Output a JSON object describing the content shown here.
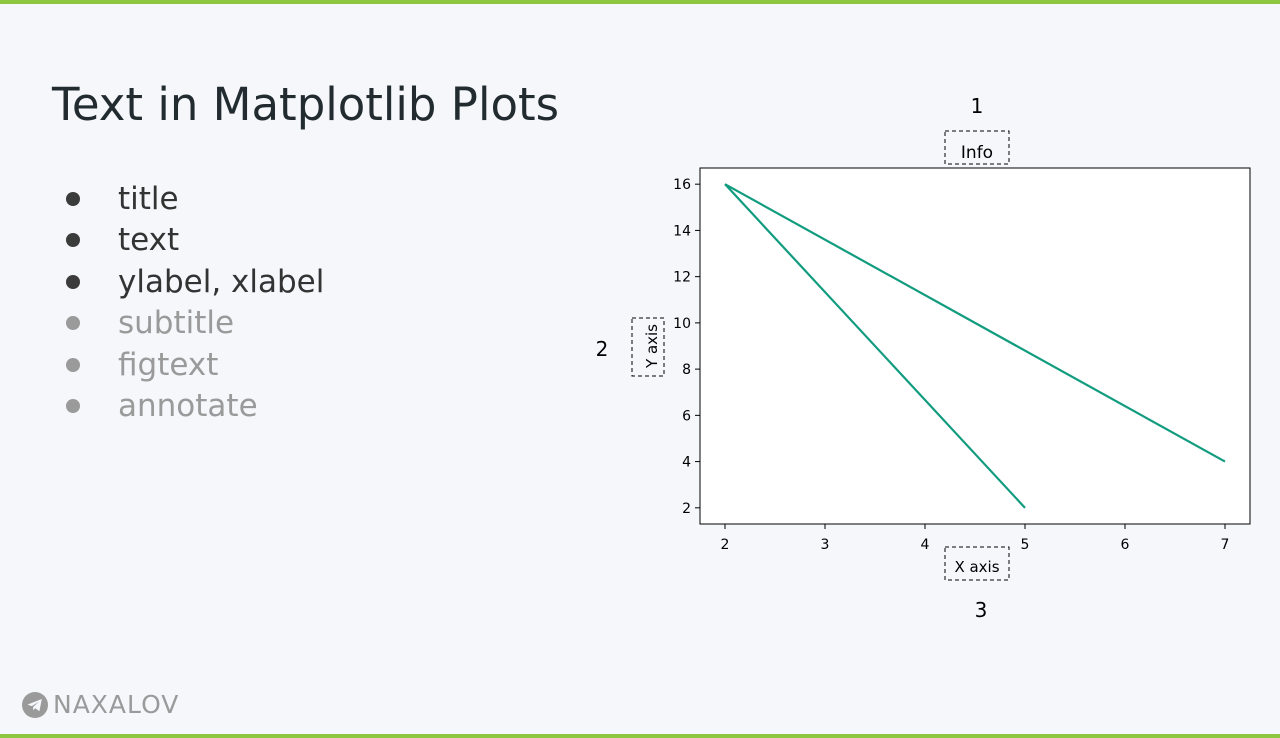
{
  "theme": {
    "accent": "#8dc63f",
    "background": "#f5f7fb",
    "line_color": "#129c7f"
  },
  "slide": {
    "title": "Text in Matplotlib Plots",
    "bullets": [
      {
        "label": "title",
        "state": "active"
      },
      {
        "label": "text",
        "state": "active"
      },
      {
        "label": "ylabel, xlabel",
        "state": "active"
      },
      {
        "label": "subtitle",
        "state": "muted"
      },
      {
        "label": "figtext",
        "state": "muted"
      },
      {
        "label": "annotate",
        "state": "muted"
      }
    ]
  },
  "callouts": {
    "title_marker": "1",
    "ylabel_marker": "2",
    "xlabel_marker": "3"
  },
  "chart_data": {
    "type": "line",
    "title": "Info",
    "xlabel": "X axis",
    "ylabel": "Y axis",
    "xlim": [
      1.75,
      7.25
    ],
    "ylim": [
      1.3,
      16.7
    ],
    "xticks": [
      2,
      3,
      4,
      5,
      6,
      7
    ],
    "yticks": [
      2,
      4,
      6,
      8,
      10,
      12,
      14,
      16
    ],
    "grid": false,
    "series": [
      {
        "x": [
          2,
          5
        ],
        "y": [
          16,
          2
        ]
      },
      {
        "x": [
          2,
          7
        ],
        "y": [
          16,
          4
        ]
      }
    ]
  },
  "branding": {
    "logo_icon": "telegram-icon",
    "name": "NAXALOV"
  }
}
